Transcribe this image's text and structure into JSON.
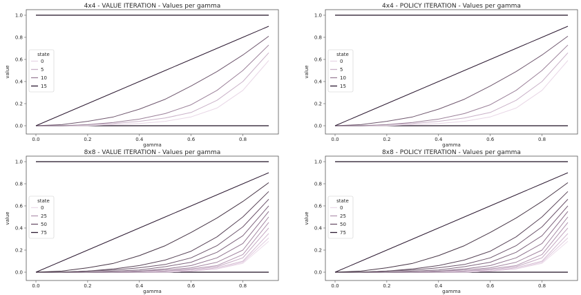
{
  "chart_data": [
    {
      "type": "line",
      "title": "4x4 - VALUE ITERATION - Values per gamma",
      "xlabel": "gamma",
      "ylabel": "value",
      "xlim": [
        0.0,
        0.9
      ],
      "ylim": [
        0.0,
        1.0
      ],
      "xticks": [
        "0.0",
        "0.2",
        "0.4",
        "0.6",
        "0.8"
      ],
      "yticks": [
        "0.0",
        "0.2",
        "0.4",
        "0.6",
        "0.8",
        "1.0"
      ],
      "legend": {
        "title": "state",
        "placement": "center-left",
        "entries": [
          "0",
          "5",
          "10",
          "15"
        ]
      },
      "x": [
        0.0,
        0.1,
        0.2,
        0.3,
        0.4,
        0.5,
        0.6,
        0.7,
        0.8,
        0.9
      ],
      "series": [
        {
          "values": [
            0,
            0,
            0,
            0,
            0,
            0,
            0,
            0,
            0,
            0
          ]
        },
        {
          "values": [
            0.0,
            0.0,
            0.0,
            0.01,
            0.02,
            0.04,
            0.08,
            0.16,
            0.32,
            0.59
          ]
        },
        {
          "values": [
            0.0,
            0.0,
            0.01,
            0.02,
            0.04,
            0.07,
            0.12,
            0.23,
            0.4,
            0.66
          ]
        },
        {
          "values": [
            0.0,
            0.0,
            0.01,
            0.03,
            0.06,
            0.11,
            0.19,
            0.32,
            0.5,
            0.73
          ]
        },
        {
          "values": [
            0.0,
            0.01,
            0.04,
            0.08,
            0.15,
            0.24,
            0.36,
            0.49,
            0.64,
            0.81
          ]
        },
        {
          "values": [
            0.0,
            0.1,
            0.2,
            0.3,
            0.4,
            0.5,
            0.6,
            0.7,
            0.8,
            0.9
          ]
        },
        {
          "values": [
            1,
            1,
            1,
            1,
            1,
            1,
            1,
            1,
            1,
            1
          ]
        }
      ],
      "colors": [
        "#1c0f22",
        "#e8d6e6",
        "#c9b1c8",
        "#9a7f98",
        "#6e566d",
        "#2b1830",
        "#1c0f22"
      ]
    },
    {
      "type": "line",
      "title": "4x4 - POLICY ITERATION - Values per gamma",
      "xlabel": "gamma",
      "ylabel": "value",
      "xlim": [
        0.0,
        0.9
      ],
      "ylim": [
        0.0,
        1.0
      ],
      "xticks": [
        "0.0",
        "0.2",
        "0.4",
        "0.6",
        "0.8"
      ],
      "yticks": [
        "0.0",
        "0.2",
        "0.4",
        "0.6",
        "0.8",
        "1.0"
      ],
      "legend": {
        "title": "state",
        "placement": "center-left",
        "entries": [
          "0",
          "5",
          "10",
          "15"
        ]
      },
      "x": [
        0.0,
        0.1,
        0.2,
        0.3,
        0.4,
        0.5,
        0.6,
        0.7,
        0.8,
        0.9
      ],
      "series": [
        {
          "values": [
            0,
            0,
            0,
            0,
            0,
            0,
            0,
            0,
            0,
            0
          ]
        },
        {
          "values": [
            0.0,
            0.0,
            0.0,
            0.01,
            0.02,
            0.04,
            0.08,
            0.16,
            0.32,
            0.59
          ]
        },
        {
          "values": [
            0.0,
            0.0,
            0.01,
            0.02,
            0.04,
            0.07,
            0.12,
            0.23,
            0.4,
            0.66
          ]
        },
        {
          "values": [
            0.0,
            0.0,
            0.01,
            0.03,
            0.06,
            0.11,
            0.19,
            0.32,
            0.5,
            0.73
          ]
        },
        {
          "values": [
            0.0,
            0.01,
            0.04,
            0.08,
            0.15,
            0.24,
            0.36,
            0.49,
            0.64,
            0.81
          ]
        },
        {
          "values": [
            0.0,
            0.1,
            0.2,
            0.3,
            0.4,
            0.5,
            0.6,
            0.7,
            0.8,
            0.9
          ]
        },
        {
          "values": [
            1,
            1,
            1,
            1,
            1,
            1,
            1,
            1,
            1,
            1
          ]
        }
      ],
      "colors": [
        "#1c0f22",
        "#e8d6e6",
        "#c9b1c8",
        "#9a7f98",
        "#6e566d",
        "#2b1830",
        "#1c0f22"
      ]
    },
    {
      "type": "line",
      "title": "8x8 - VALUE ITERATION - Values per gamma",
      "xlabel": "gamma",
      "ylabel": "value",
      "xlim": [
        0.0,
        0.9
      ],
      "ylim": [
        0.0,
        1.0
      ],
      "xticks": [
        "0.0",
        "0.2",
        "0.4",
        "0.6",
        "0.8"
      ],
      "yticks": [
        "0.0",
        "0.2",
        "0.4",
        "0.6",
        "0.8",
        "1.0"
      ],
      "legend": {
        "title": "state",
        "placement": "center-left",
        "entries": [
          "0",
          "25",
          "50",
          "75"
        ]
      },
      "x": [
        0.0,
        0.1,
        0.2,
        0.3,
        0.4,
        0.5,
        0.6,
        0.7,
        0.8,
        0.9
      ],
      "series": [
        {
          "values": [
            0,
            0,
            0,
            0,
            0,
            0,
            0,
            0,
            0,
            0
          ]
        },
        {
          "values": [
            0.0,
            0.0,
            0.0,
            0.0,
            0.0,
            0.0,
            0.01,
            0.03,
            0.08,
            0.28
          ]
        },
        {
          "values": [
            0.0,
            0.0,
            0.0,
            0.0,
            0.0,
            0.0,
            0.01,
            0.03,
            0.09,
            0.31
          ]
        },
        {
          "values": [
            0.0,
            0.0,
            0.0,
            0.0,
            0.0,
            0.0,
            0.01,
            0.04,
            0.1,
            0.35
          ]
        },
        {
          "values": [
            0.0,
            0.0,
            0.0,
            0.0,
            0.0,
            0.01,
            0.02,
            0.05,
            0.13,
            0.4
          ]
        },
        {
          "values": [
            0.0,
            0.0,
            0.0,
            0.0,
            0.0,
            0.01,
            0.03,
            0.06,
            0.16,
            0.45
          ]
        },
        {
          "values": [
            0.0,
            0.0,
            0.0,
            0.0,
            0.01,
            0.02,
            0.04,
            0.09,
            0.2,
            0.5
          ]
        },
        {
          "values": [
            0.0,
            0.0,
            0.0,
            0.0,
            0.01,
            0.03,
            0.06,
            0.13,
            0.26,
            0.55
          ]
        },
        {
          "values": [
            0.0,
            0.0,
            0.0,
            0.01,
            0.02,
            0.05,
            0.09,
            0.18,
            0.33,
            0.6
          ]
        },
        {
          "values": [
            0.0,
            0.0,
            0.01,
            0.02,
            0.04,
            0.07,
            0.13,
            0.24,
            0.41,
            0.66
          ]
        },
        {
          "values": [
            0.0,
            0.0,
            0.01,
            0.03,
            0.06,
            0.11,
            0.19,
            0.32,
            0.5,
            0.73
          ]
        },
        {
          "values": [
            0.0,
            0.01,
            0.04,
            0.08,
            0.15,
            0.24,
            0.36,
            0.49,
            0.64,
            0.81
          ]
        },
        {
          "values": [
            0.0,
            0.1,
            0.2,
            0.3,
            0.4,
            0.5,
            0.6,
            0.7,
            0.8,
            0.9
          ]
        },
        {
          "values": [
            1,
            1,
            1,
            1,
            1,
            1,
            1,
            1,
            1,
            1
          ]
        }
      ],
      "colors": [
        "#1c0f22",
        "#ecdcea",
        "#e0cade",
        "#d3b9d1",
        "#c4a8c2",
        "#b497b2",
        "#a386a1",
        "#917590",
        "#7e647d",
        "#6b536a",
        "#584357",
        "#453344",
        "#2b1830",
        "#1c0f22"
      ]
    },
    {
      "type": "line",
      "title": "8x8 - POLICY ITERATION - Values per gamma",
      "xlabel": "gamma",
      "ylabel": "value",
      "xlim": [
        0.0,
        0.9
      ],
      "ylim": [
        0.0,
        1.0
      ],
      "xticks": [
        "0.0",
        "0.2",
        "0.4",
        "0.6",
        "0.8"
      ],
      "yticks": [
        "0.0",
        "0.2",
        "0.4",
        "0.6",
        "0.8",
        "1.0"
      ],
      "legend": {
        "title": "state",
        "placement": "center-left",
        "entries": [
          "0",
          "25",
          "50",
          "75"
        ]
      },
      "x": [
        0.0,
        0.1,
        0.2,
        0.3,
        0.4,
        0.5,
        0.6,
        0.7,
        0.8,
        0.9
      ],
      "series": [
        {
          "values": [
            0,
            0,
            0,
            0,
            0,
            0,
            0,
            0,
            0,
            0
          ]
        },
        {
          "values": [
            0.0,
            0.0,
            0.0,
            0.0,
            0.0,
            0.0,
            0.01,
            0.03,
            0.08,
            0.28
          ]
        },
        {
          "values": [
            0.0,
            0.0,
            0.0,
            0.0,
            0.0,
            0.0,
            0.01,
            0.03,
            0.09,
            0.31
          ]
        },
        {
          "values": [
            0.0,
            0.0,
            0.0,
            0.0,
            0.0,
            0.0,
            0.01,
            0.04,
            0.1,
            0.35
          ]
        },
        {
          "values": [
            0.0,
            0.0,
            0.0,
            0.0,
            0.0,
            0.01,
            0.02,
            0.05,
            0.13,
            0.4
          ]
        },
        {
          "values": [
            0.0,
            0.0,
            0.0,
            0.0,
            0.0,
            0.01,
            0.03,
            0.06,
            0.16,
            0.45
          ]
        },
        {
          "values": [
            0.0,
            0.0,
            0.0,
            0.0,
            0.01,
            0.02,
            0.04,
            0.09,
            0.2,
            0.5
          ]
        },
        {
          "values": [
            0.0,
            0.0,
            0.0,
            0.0,
            0.01,
            0.03,
            0.06,
            0.13,
            0.26,
            0.55
          ]
        },
        {
          "values": [
            0.0,
            0.0,
            0.0,
            0.01,
            0.02,
            0.05,
            0.09,
            0.18,
            0.33,
            0.6
          ]
        },
        {
          "values": [
            0.0,
            0.0,
            0.01,
            0.02,
            0.04,
            0.07,
            0.13,
            0.24,
            0.41,
            0.66
          ]
        },
        {
          "values": [
            0.0,
            0.0,
            0.01,
            0.03,
            0.06,
            0.11,
            0.19,
            0.32,
            0.5,
            0.73
          ]
        },
        {
          "values": [
            0.0,
            0.01,
            0.04,
            0.08,
            0.15,
            0.24,
            0.36,
            0.49,
            0.64,
            0.81
          ]
        },
        {
          "values": [
            0.0,
            0.1,
            0.2,
            0.3,
            0.4,
            0.5,
            0.6,
            0.7,
            0.8,
            0.9
          ]
        },
        {
          "values": [
            1,
            1,
            1,
            1,
            1,
            1,
            1,
            1,
            1,
            1
          ]
        }
      ],
      "colors": [
        "#1c0f22",
        "#ecdcea",
        "#e0cade",
        "#d3b9d1",
        "#c4a8c2",
        "#b497b2",
        "#a386a1",
        "#917590",
        "#7e647d",
        "#6b536a",
        "#584357",
        "#453344",
        "#2b1830",
        "#1c0f22"
      ]
    }
  ]
}
